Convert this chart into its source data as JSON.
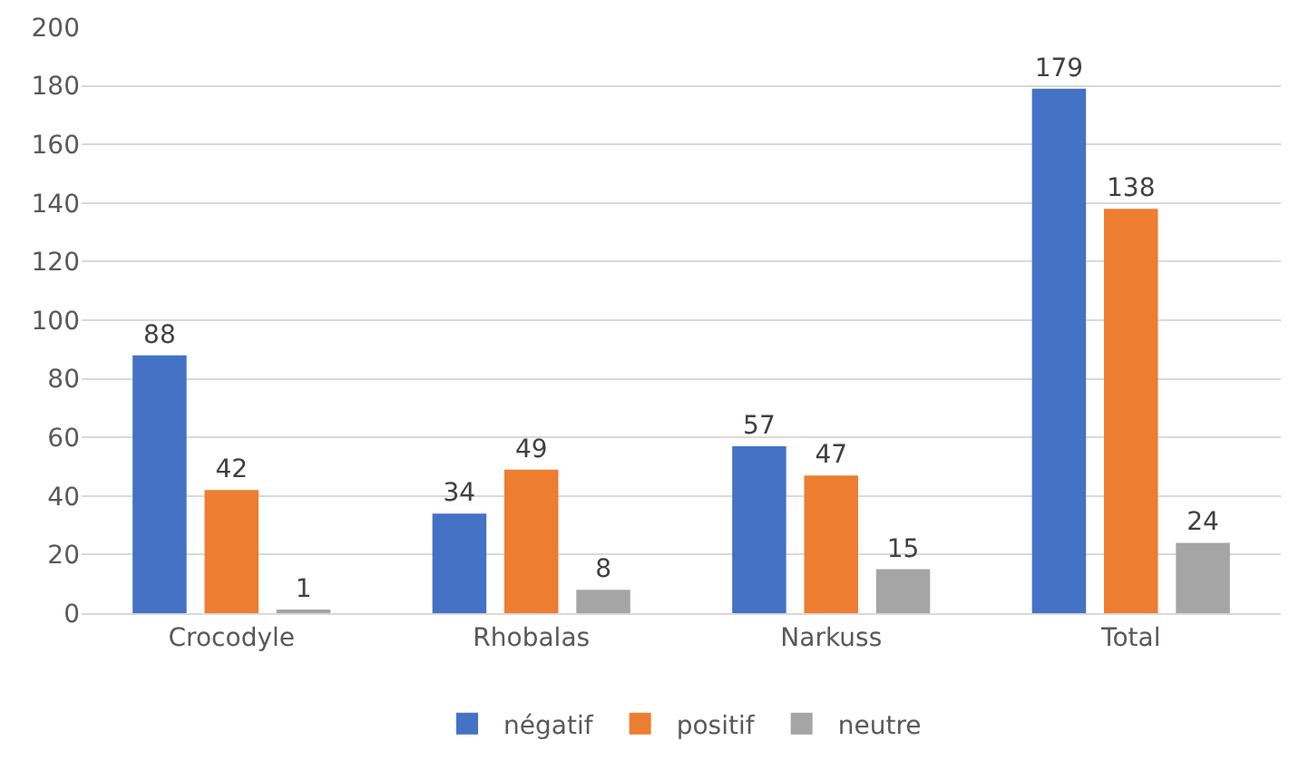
{
  "chart_data": {
    "type": "bar",
    "categories": [
      "Crocodyle",
      "Rhobalas",
      "Narkuss",
      "Total"
    ],
    "series": [
      {
        "name": "négatif",
        "color": "#4472c4",
        "values": [
          88,
          34,
          57,
          179
        ]
      },
      {
        "name": "positif",
        "color": "#ed7d31",
        "values": [
          42,
          49,
          47,
          138
        ]
      },
      {
        "name": "neutre",
        "color": "#a5a5a5",
        "values": [
          1,
          8,
          15,
          24
        ]
      }
    ],
    "ylim": [
      0,
      200
    ],
    "yticks": [
      0,
      20,
      40,
      60,
      80,
      100,
      120,
      140,
      160,
      180,
      200
    ],
    "grid": "y",
    "legend": "bottom",
    "data_labels": true
  }
}
